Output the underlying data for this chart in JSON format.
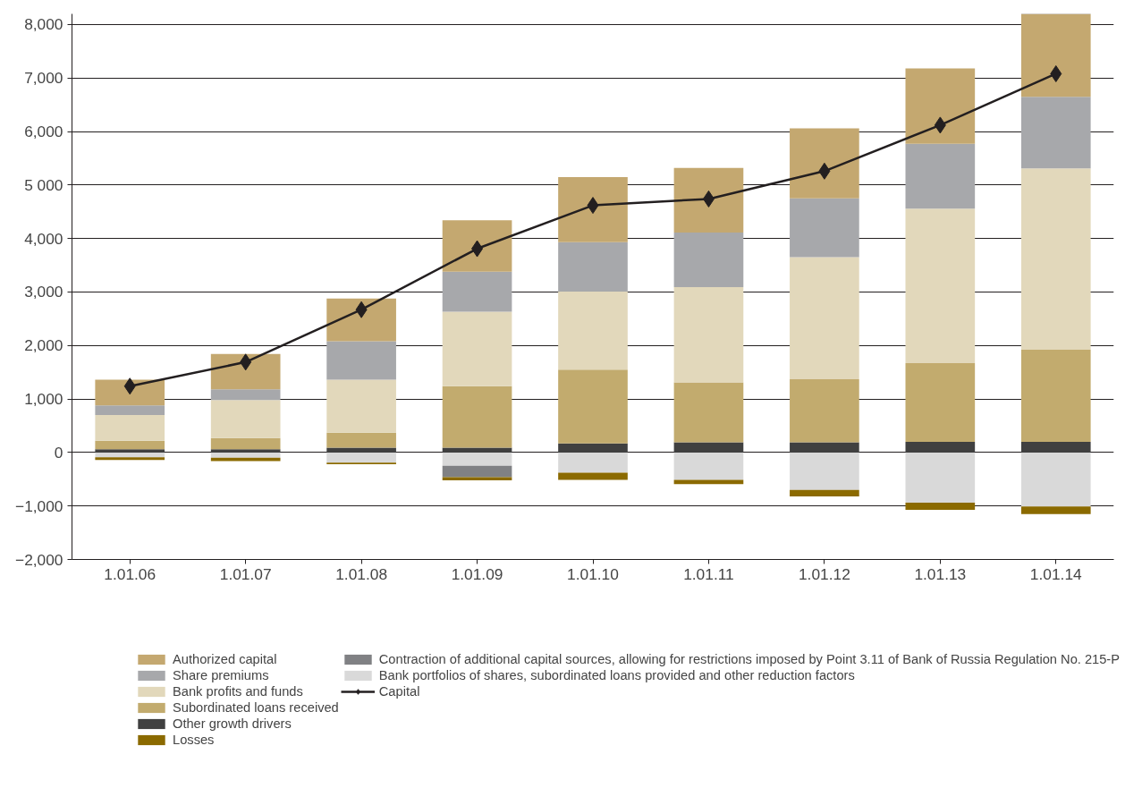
{
  "chart_data": {
    "type": "bar",
    "stacked": true,
    "categories": [
      "1.01.06",
      "1.01.07",
      "1.01.08",
      "1.01.09",
      "1.01.10",
      "1.01.11",
      "1.01.12",
      "1.01.13",
      "1.01.14"
    ],
    "series": [
      {
        "name": "Other growth drivers",
        "color": "#404040",
        "values": [
          60,
          60,
          90,
          90,
          170,
          190,
          190,
          200,
          200
        ]
      },
      {
        "name": "Subordinated loans received",
        "color": "#c2ab6e",
        "values": [
          160,
          210,
          280,
          1150,
          1380,
          1120,
          1180,
          1470,
          1720
        ]
      },
      {
        "name": "Bank profits and funds",
        "color": "#e2d8bb",
        "values": [
          480,
          710,
          990,
          1390,
          1460,
          1780,
          2280,
          2890,
          3390
        ]
      },
      {
        "name": "Share premiums",
        "color": "#a7a8ab",
        "values": [
          180,
          200,
          720,
          750,
          920,
          1020,
          1100,
          1210,
          1340
        ]
      },
      {
        "name": "Authorized capital",
        "color": "#c4a870",
        "values": [
          480,
          660,
          800,
          960,
          1220,
          1210,
          1310,
          1410,
          1560
        ]
      },
      {
        "name": "Bank portfolios of shares, subordinated loans provided and other reduction factors",
        "color": "#d9d9d9",
        "values": [
          -90,
          -100,
          -190,
          -250,
          -380,
          -510,
          -700,
          -940,
          -1010
        ]
      },
      {
        "name": "Contraction of additional capital sources, allowing for restrictions imposed by Point 3.11 of Bank of Russia Regulation No. 215-P",
        "color": "#808184",
        "values": [
          0,
          0,
          0,
          -210,
          0,
          0,
          0,
          0,
          0
        ]
      },
      {
        "name": "Losses",
        "color": "#8b6a00",
        "values": [
          -50,
          -60,
          -30,
          -60,
          -130,
          -80,
          -120,
          -130,
          -140
        ]
      },
      {
        "name": "Capital",
        "type": "line",
        "color": "#231f20",
        "marker": "diamond",
        "values": [
          1240,
          1690,
          2670,
          3810,
          4620,
          4740,
          5260,
          6120,
          7080
        ]
      }
    ],
    "ylim": [
      -2000,
      8200
    ],
    "yticks": [
      {
        "value": -2000,
        "label": "−2,000"
      },
      {
        "value": -1000,
        "label": "−1,000"
      },
      0,
      {
        "value": 1000,
        "label": "1,000"
      },
      {
        "value": 2000,
        "label": "2,000"
      },
      {
        "value": 3000,
        "label": "3,000"
      },
      {
        "value": 4000,
        "label": "4,000"
      },
      {
        "value": 5000,
        "label": "5 000"
      },
      {
        "value": 6000,
        "label": "6,000"
      },
      {
        "value": 7000,
        "label": "7,000"
      },
      {
        "value": 8000,
        "label": "8,000"
      }
    ],
    "grid": "y",
    "legend": "bottom"
  }
}
